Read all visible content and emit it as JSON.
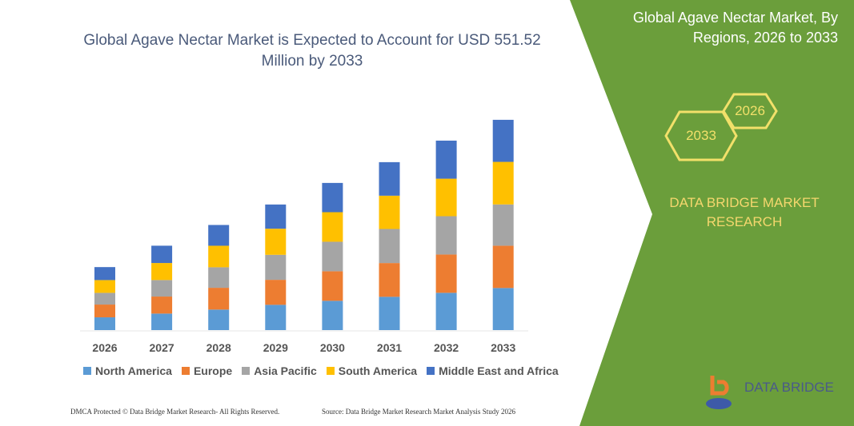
{
  "chart_data": {
    "type": "bar",
    "stacked": true,
    "title": "Global Agave Nectar Market is Expected to Account for USD 551.52 Million by 2033",
    "categories": [
      "2026",
      "2027",
      "2028",
      "2029",
      "2030",
      "2031",
      "2032",
      "2033"
    ],
    "series": [
      {
        "name": "North America",
        "color": "#5b9bd5",
        "values": [
          33.5,
          43.3,
          53.8,
          66.3,
          76.8,
          87.3,
          97.8,
          110.4
        ]
      },
      {
        "name": "Europe",
        "color": "#ed7d31",
        "values": [
          33.5,
          44.7,
          57.2,
          65.6,
          77.5,
          88.6,
          100.5,
          111.0
        ]
      },
      {
        "name": "Asia Pacific",
        "color": "#a5a5a5",
        "values": [
          30.7,
          43.3,
          53.8,
          65.6,
          77.5,
          89.4,
          100.5,
          108.3
        ]
      },
      {
        "name": "South America",
        "color": "#ffc000",
        "values": [
          33.5,
          44.7,
          56.5,
          68.5,
          77.5,
          87.3,
          98.4,
          111.6
        ]
      },
      {
        "name": "Middle East and Africa",
        "color": "#4472c4",
        "values": [
          34.1,
          45.4,
          54.5,
          63.5,
          76.8,
          88.0,
          99.9,
          110.4
        ]
      }
    ],
    "ylim": [
      0,
      560
    ],
    "grid": false,
    "legend": "bottom"
  },
  "panel": {
    "title": "Global Agave Nectar Market, By Regions, 2026 to 2033",
    "hex1": "2026",
    "hex2": "2033",
    "brand": "DATA BRIDGE MARKET RESEARCH",
    "green": "#6b9e3b"
  },
  "logo": {
    "text": "DATA BRIDGE"
  },
  "footer": {
    "left": "DMCA Protected © Data Bridge Market Research- All Rights Reserved.",
    "right": "Source: Data Bridge Market Research Market Analysis Study 2026"
  }
}
